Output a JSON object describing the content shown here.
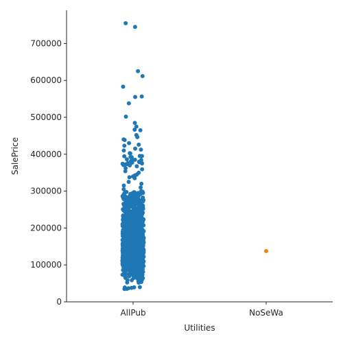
{
  "chart_data": {
    "type": "scatter",
    "subtype": "strip",
    "xlabel": "Utilities",
    "ylabel": "SalePrice",
    "categories": [
      "AllPub",
      "NoSeWa"
    ],
    "ylim": [
      0,
      790000
    ],
    "yticks": [
      0,
      100000,
      200000,
      300000,
      400000,
      500000,
      600000,
      700000
    ],
    "ytick_labels": [
      "0",
      "100000",
      "200000",
      "300000",
      "400000",
      "500000",
      "600000",
      "700000"
    ],
    "grid": false,
    "colors": {
      "AllPub": "#1f77b4",
      "NoSeWa": "#ff7f0e"
    },
    "series": [
      {
        "category": "AllPub",
        "count": 1459,
        "values_highlighted": [
          755000,
          745000,
          625000,
          611657,
          582933,
          556581,
          555000,
          538000,
          501837,
          485000,
          475000,
          466500,
          465000,
          451950,
          446261,
          440000,
          438780,
          430000,
          426000,
          423000,
          415298,
          412500,
          410000,
          402861,
          402000,
          395192,
          395000,
          394617,
          394432,
          392500,
          392000,
          386250,
          385000,
          384000,
          383970,
          381000,
          380000,
          378500,
          377500,
          377426,
          376162,
          375000,
          374000,
          372500,
          372402,
          370878,
          369900,
          367294,
          361919,
          359100,
          354000,
          350000,
          345000,
          342643,
          340000,
          337500,
          335000,
          325000,
          320000,
          315000,
          310000,
          305000,
          300000,
          60000,
          58500,
          55000,
          52500,
          52000,
          40000,
          39300,
          37900,
          35311,
          34900
        ],
        "distribution": {
          "min": 34900,
          "q1": 129975,
          "median": 163000,
          "q3": 214000,
          "max": 755000
        }
      },
      {
        "category": "NoSeWa",
        "count": 1,
        "values": [
          137500
        ]
      }
    ]
  }
}
